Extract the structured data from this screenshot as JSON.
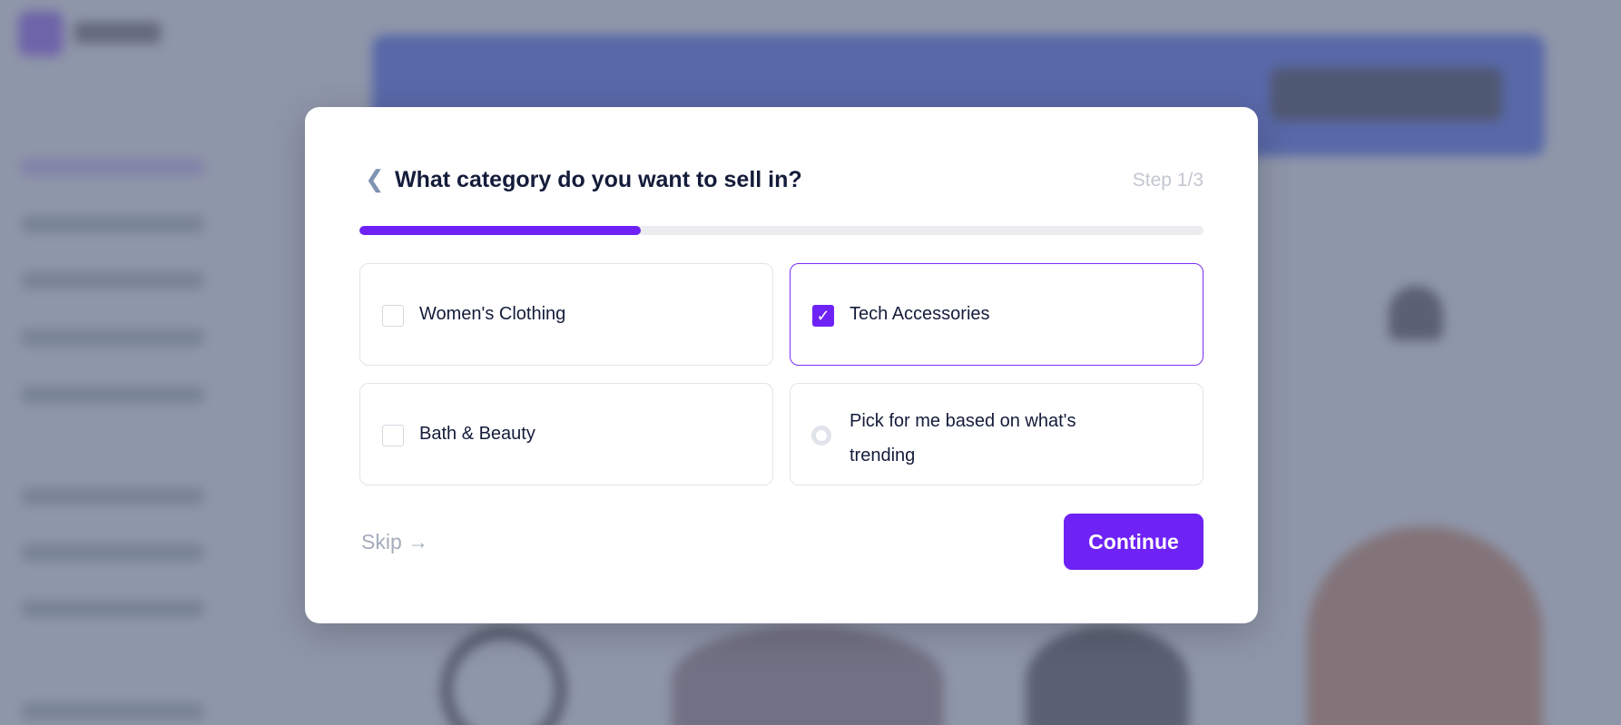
{
  "modal": {
    "title": "What category do you want to sell in?",
    "step": "Step 1/3",
    "progress_fraction": 0.3333,
    "options": [
      {
        "label": "Women's Clothing",
        "checked": false,
        "control": "checkbox"
      },
      {
        "label": "Tech Accessories",
        "checked": true,
        "control": "checkbox"
      },
      {
        "label": "Bath & Beauty",
        "checked": false,
        "control": "checkbox"
      },
      {
        "label": "Pick for me based on what's trending",
        "checked": false,
        "control": "radio"
      }
    ],
    "skip_label": "Skip",
    "skip_icon": "arrow-right-icon",
    "continue_label": "Continue",
    "back_icon": "chevron-left-icon"
  },
  "colors": {
    "accent": "#6e22f5",
    "title": "#141c3a",
    "banner": "#2f4cf0"
  }
}
